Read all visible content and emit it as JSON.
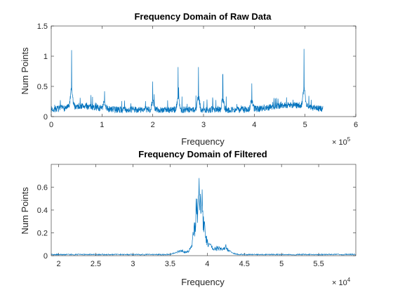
{
  "chart_data": [
    {
      "type": "line",
      "title": "Frequency Domain of Raw Data",
      "xlabel": "Frequency",
      "ylabel": "Num Points",
      "xlim": [
        0,
        600000
      ],
      "ylim": [
        0,
        1.5
      ],
      "xticks": [
        0,
        100000,
        200000,
        300000,
        400000,
        500000,
        600000
      ],
      "xtick_labels": [
        "0",
        "1",
        "2",
        "3",
        "4",
        "5",
        "6"
      ],
      "yticks": [
        0,
        0.5,
        1,
        1.5
      ],
      "ytick_labels": [
        "0",
        "0.5",
        "1",
        "1.5"
      ],
      "x_exponent_label": "× 10",
      "x_exponent_power": "5",
      "grid": false,
      "color": "#0072BD",
      "x_range": [
        0,
        535000
      ],
      "noise_floor": 0.12,
      "peaks": [
        {
          "x": 40000,
          "y": 1.1
        },
        {
          "x": 105000,
          "y": 0.42
        },
        {
          "x": 200000,
          "y": 0.58
        },
        {
          "x": 250000,
          "y": 0.82
        },
        {
          "x": 290000,
          "y": 0.82
        },
        {
          "x": 338000,
          "y": 0.7
        },
        {
          "x": 395000,
          "y": 0.55
        },
        {
          "x": 498000,
          "y": 1.12
        }
      ]
    },
    {
      "type": "line",
      "title": "Frequency Domain of Filtered",
      "xlabel": "Frequency",
      "ylabel": "Num Points",
      "xlim": [
        19000,
        60000
      ],
      "ylim": [
        0,
        0.8
      ],
      "xticks": [
        20000,
        25000,
        30000,
        35000,
        40000,
        45000,
        50000,
        55000
      ],
      "xtick_labels": [
        "2",
        "2.5",
        "3",
        "3.5",
        "4",
        "4.5",
        "5",
        "5.5"
      ],
      "yticks": [
        0,
        0.2,
        0.4,
        0.6
      ],
      "ytick_labels": [
        "0",
        "0.2",
        "0.4",
        "0.6"
      ],
      "x_exponent_label": "× 10",
      "x_exponent_power": "4",
      "grid": false,
      "color": "#0072BD",
      "noise_floor": 0.01,
      "peaks": [
        {
          "x": 38500,
          "y": 0.5
        },
        {
          "x": 38900,
          "y": 0.68
        },
        {
          "x": 39300,
          "y": 0.58
        },
        {
          "x": 42500,
          "y": 0.1
        }
      ]
    }
  ]
}
